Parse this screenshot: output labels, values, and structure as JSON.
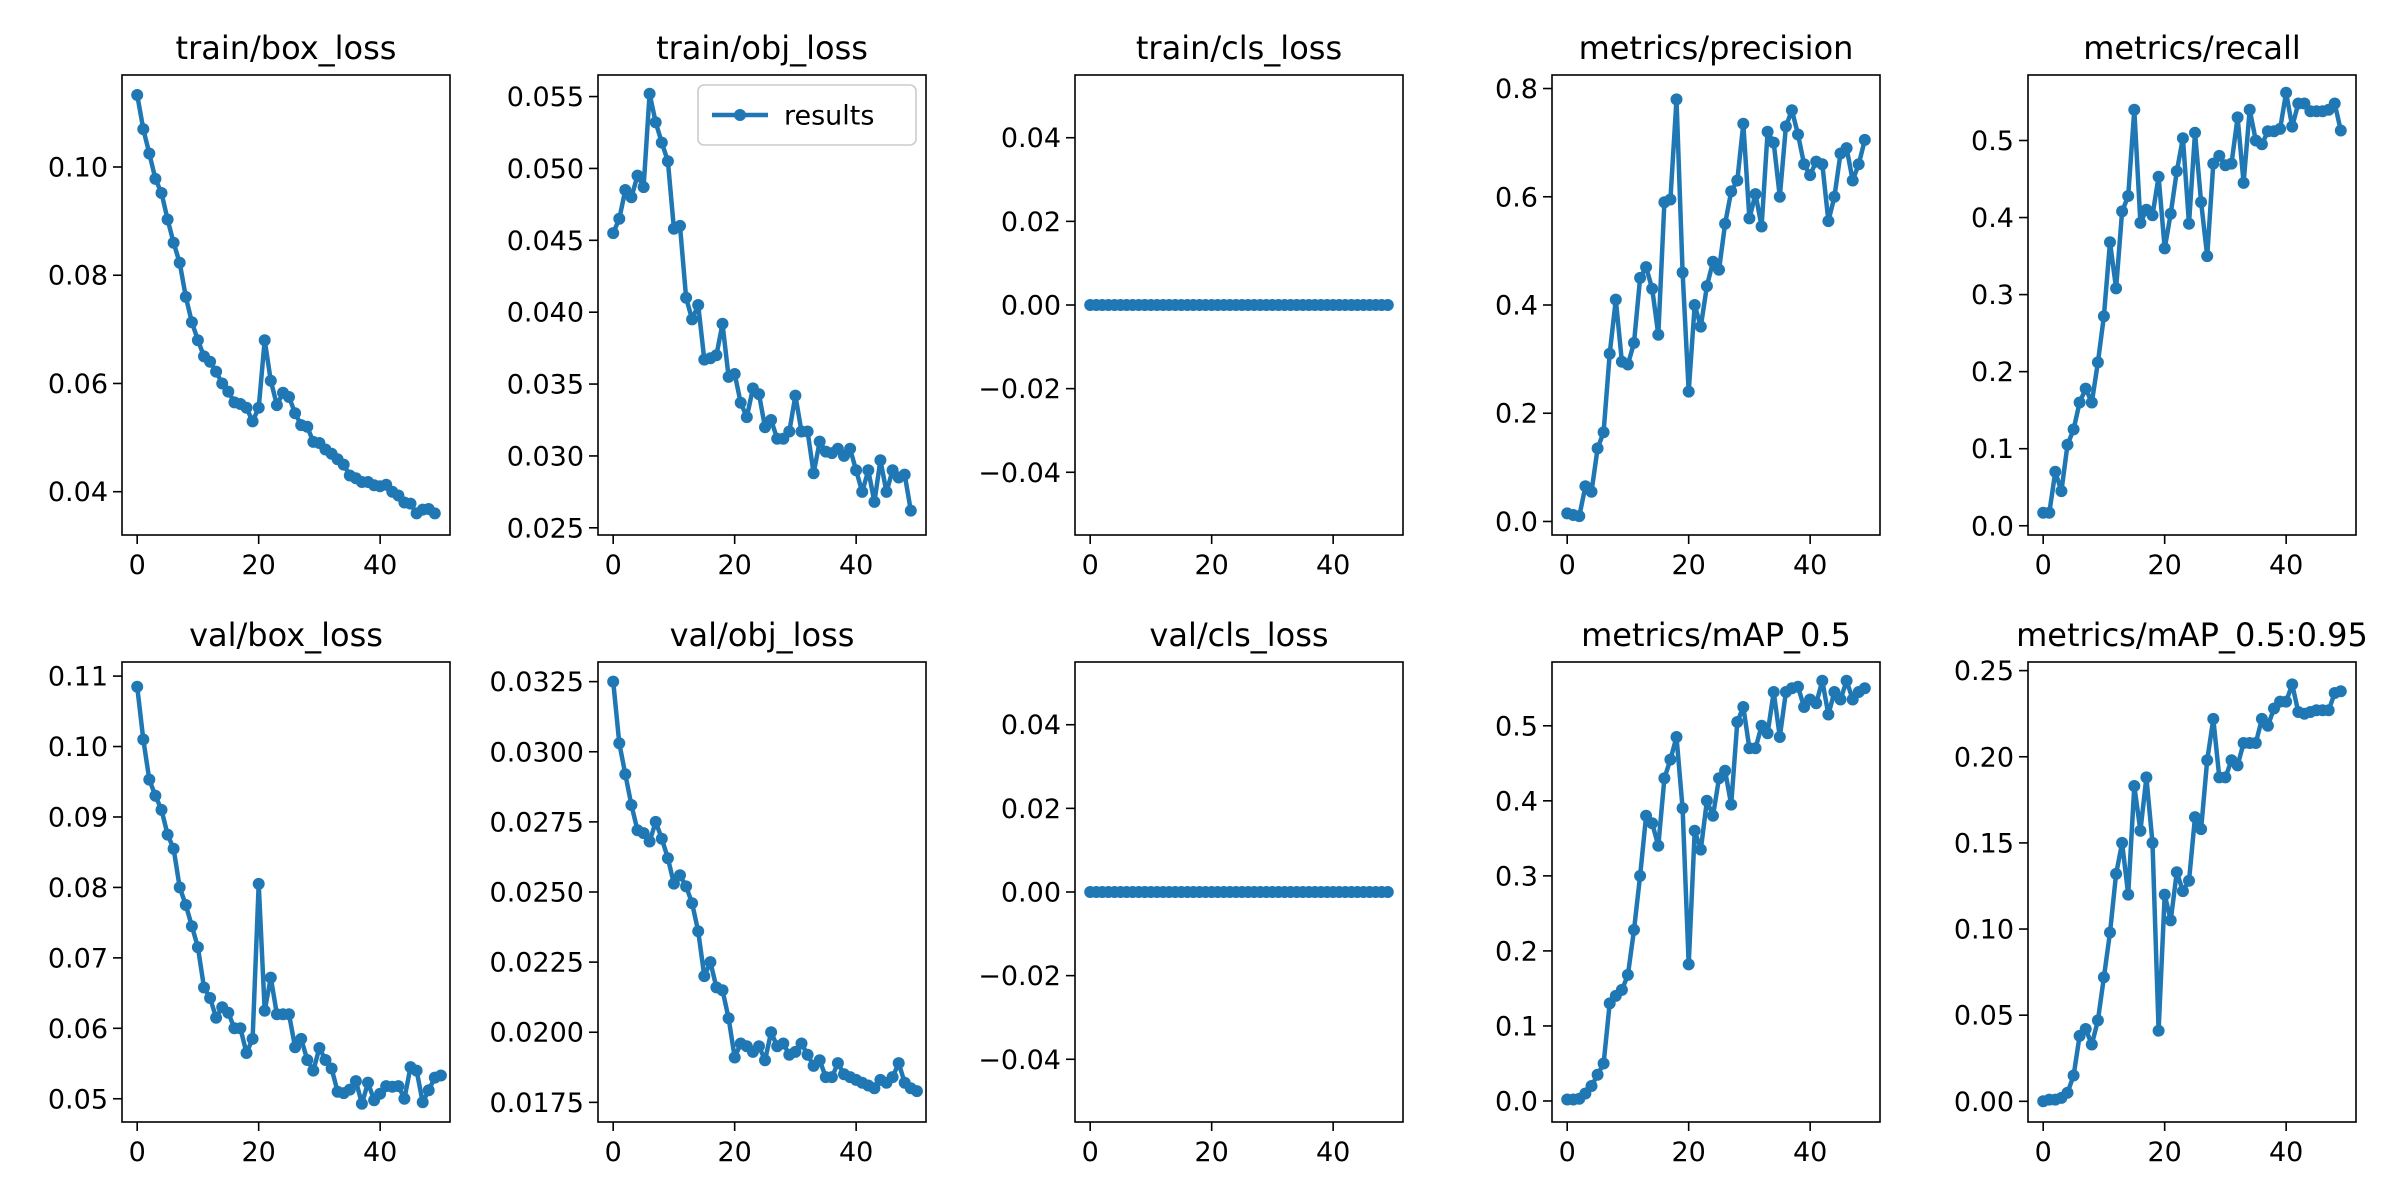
{
  "colors": {
    "series": "#1f77b4",
    "axis": "#000000",
    "background": "#ffffff"
  },
  "legend": {
    "label": "results",
    "placement": "top-right",
    "panel": 1
  },
  "chart_data": [
    {
      "type": "line",
      "title": "train/box_loss",
      "xlabel": "",
      "ylabel": "",
      "xlim": [
        -2.5,
        51.5
      ],
      "ylim": [
        0.032,
        0.117
      ],
      "xticks": [
        0,
        20,
        40
      ],
      "xtick_labels": [
        "0",
        "20",
        "40"
      ],
      "yticks": [
        0.04,
        0.06,
        0.08,
        0.1
      ],
      "ytick_labels": [
        "0.04",
        "0.06",
        "0.08",
        "0.10"
      ],
      "series": [
        {
          "x_start": 0,
          "values": [
            0.1133,
            0.107,
            0.1025,
            0.0978,
            0.0952,
            0.0903,
            0.086,
            0.0823,
            0.076,
            0.0713,
            0.068,
            0.065,
            0.064,
            0.0622,
            0.06,
            0.0585,
            0.0565,
            0.0562,
            0.0555,
            0.053,
            0.0555,
            0.068,
            0.0605,
            0.056,
            0.0583,
            0.0575,
            0.0545,
            0.0523,
            0.052,
            0.0492,
            0.049,
            0.0478,
            0.047,
            0.046,
            0.045,
            0.043,
            0.0425,
            0.0418,
            0.0418,
            0.0412,
            0.041,
            0.0413,
            0.04,
            0.0393,
            0.038,
            0.0378,
            0.036,
            0.0367,
            0.0368,
            0.036
          ]
        }
      ]
    },
    {
      "type": "line",
      "title": "train/obj_loss",
      "xlabel": "",
      "ylabel": "",
      "xlim": [
        -2.5,
        51.5
      ],
      "ylim": [
        0.0245,
        0.0565
      ],
      "xticks": [
        0,
        20,
        40
      ],
      "xtick_labels": [
        "0",
        "20",
        "40"
      ],
      "yticks": [
        0.025,
        0.03,
        0.035,
        0.04,
        0.045,
        0.05,
        0.055
      ],
      "ytick_labels": [
        "0.025",
        "0.030",
        "0.035",
        "0.040",
        "0.045",
        "0.050",
        "0.055"
      ],
      "series": [
        {
          "name": "results",
          "x_start": 0,
          "values": [
            0.0455,
            0.0465,
            0.0485,
            0.048,
            0.0495,
            0.0487,
            0.0552,
            0.0532,
            0.0518,
            0.0505,
            0.0458,
            0.046,
            0.041,
            0.0395,
            0.0405,
            0.0367,
            0.0368,
            0.037,
            0.0392,
            0.0355,
            0.0357,
            0.0337,
            0.0327,
            0.0347,
            0.0343,
            0.032,
            0.0325,
            0.0312,
            0.0312,
            0.0317,
            0.0342,
            0.0317,
            0.0317,
            0.0288,
            0.031,
            0.0303,
            0.0302,
            0.0305,
            0.03,
            0.0305,
            0.029,
            0.0275,
            0.029,
            0.0268,
            0.0297,
            0.0275,
            0.029,
            0.0285,
            0.0287,
            0.0262
          ]
        }
      ]
    },
    {
      "type": "line",
      "title": "train/cls_loss",
      "xlabel": "",
      "ylabel": "",
      "xlim": [
        -2.5,
        51.5
      ],
      "ylim": [
        -0.055,
        0.055
      ],
      "xticks": [
        0,
        20,
        40
      ],
      "xtick_labels": [
        "0",
        "20",
        "40"
      ],
      "yticks": [
        -0.04,
        -0.02,
        0.0,
        0.02,
        0.04
      ],
      "ytick_labels": [
        "−0.04",
        "−0.02",
        "0.00",
        "0.02",
        "0.04"
      ],
      "series": [
        {
          "x_start": 0,
          "values": [
            0,
            0,
            0,
            0,
            0,
            0,
            0,
            0,
            0,
            0,
            0,
            0,
            0,
            0,
            0,
            0,
            0,
            0,
            0,
            0,
            0,
            0,
            0,
            0,
            0,
            0,
            0,
            0,
            0,
            0,
            0,
            0,
            0,
            0,
            0,
            0,
            0,
            0,
            0,
            0,
            0,
            0,
            0,
            0,
            0,
            0,
            0,
            0,
            0,
            0
          ]
        }
      ]
    },
    {
      "type": "line",
      "title": "metrics/precision",
      "xlabel": "",
      "ylabel": "",
      "xlim": [
        -2.5,
        51.5
      ],
      "ylim": [
        -0.025,
        0.825
      ],
      "xticks": [
        0,
        20,
        40
      ],
      "xtick_labels": [
        "0",
        "20",
        "40"
      ],
      "yticks": [
        0.0,
        0.2,
        0.4,
        0.6,
        0.8
      ],
      "ytick_labels": [
        "0.0",
        "0.2",
        "0.4",
        "0.6",
        "0.8"
      ],
      "series": [
        {
          "x_start": 0,
          "values": [
            0.015,
            0.012,
            0.01,
            0.065,
            0.055,
            0.135,
            0.165,
            0.31,
            0.41,
            0.295,
            0.29,
            0.33,
            0.45,
            0.47,
            0.43,
            0.345,
            0.59,
            0.595,
            0.78,
            0.46,
            0.24,
            0.4,
            0.36,
            0.435,
            0.48,
            0.465,
            0.55,
            0.61,
            0.63,
            0.735,
            0.56,
            0.605,
            0.545,
            0.72,
            0.7,
            0.6,
            0.73,
            0.76,
            0.715,
            0.66,
            0.64,
            0.665,
            0.66,
            0.555,
            0.6,
            0.68,
            0.69,
            0.63,
            0.66,
            0.705
          ]
        }
      ]
    },
    {
      "type": "line",
      "title": "metrics/recall",
      "xlabel": "",
      "ylabel": "",
      "xlim": [
        -2.5,
        51.5
      ],
      "ylim": [
        -0.012,
        0.585
      ],
      "xticks": [
        0,
        20,
        40
      ],
      "xtick_labels": [
        "0",
        "20",
        "40"
      ],
      "yticks": [
        0.0,
        0.1,
        0.2,
        0.3,
        0.4,
        0.5
      ],
      "ytick_labels": [
        "0.0",
        "0.1",
        "0.2",
        "0.3",
        "0.4",
        "0.5"
      ],
      "series": [
        {
          "x_start": 0,
          "values": [
            0.017,
            0.017,
            0.07,
            0.045,
            0.105,
            0.125,
            0.16,
            0.178,
            0.16,
            0.212,
            0.272,
            0.368,
            0.308,
            0.408,
            0.428,
            0.54,
            0.393,
            0.41,
            0.403,
            0.453,
            0.36,
            0.405,
            0.46,
            0.503,
            0.392,
            0.51,
            0.42,
            0.35,
            0.47,
            0.48,
            0.468,
            0.47,
            0.53,
            0.445,
            0.54,
            0.5,
            0.495,
            0.512,
            0.512,
            0.515,
            0.562,
            0.518,
            0.548,
            0.548,
            0.538,
            0.538,
            0.538,
            0.54,
            0.548,
            0.513
          ]
        }
      ]
    },
    {
      "type": "line",
      "title": "val/box_loss",
      "xlabel": "",
      "ylabel": "",
      "xlim": [
        -2.5,
        51.5
      ],
      "ylim": [
        0.0467,
        0.112
      ],
      "xticks": [
        0,
        20,
        40
      ],
      "xtick_labels": [
        "0",
        "20",
        "40"
      ],
      "yticks": [
        0.05,
        0.06,
        0.07,
        0.08,
        0.09,
        0.1,
        0.11
      ],
      "ytick_labels": [
        "0.05",
        "0.06",
        "0.07",
        "0.08",
        "0.09",
        "0.10",
        "0.11"
      ],
      "series": [
        {
          "x_start": 0,
          "values": [
            0.1085,
            0.101,
            0.0953,
            0.093,
            0.091,
            0.0875,
            0.0855,
            0.08,
            0.0775,
            0.0745,
            0.0715,
            0.0658,
            0.0643,
            0.0615,
            0.063,
            0.0622,
            0.06,
            0.06,
            0.0565,
            0.0585,
            0.0805,
            0.0625,
            0.0672,
            0.062,
            0.062,
            0.062,
            0.0573,
            0.0585,
            0.0555,
            0.054,
            0.0572,
            0.0555,
            0.0543,
            0.051,
            0.0508,
            0.0513,
            0.0525,
            0.0493,
            0.0523,
            0.0498,
            0.0507,
            0.0518,
            0.0517,
            0.0518,
            0.05,
            0.0545,
            0.054,
            0.0495,
            0.0512,
            0.053,
            0.0533
          ]
        }
      ]
    },
    {
      "type": "line",
      "title": "val/obj_loss",
      "xlabel": "",
      "ylabel": "",
      "xlim": [
        -2.5,
        51.5
      ],
      "ylim": [
        0.0168,
        0.0332
      ],
      "xticks": [
        0,
        20,
        40
      ],
      "xtick_labels": [
        "0",
        "20",
        "40"
      ],
      "yticks": [
        0.0175,
        0.02,
        0.0225,
        0.025,
        0.0275,
        0.03,
        0.0325
      ],
      "ytick_labels": [
        "0.0175",
        "0.0200",
        "0.0225",
        "0.0250",
        "0.0275",
        "0.0300",
        "0.0325"
      ],
      "series": [
        {
          "x_start": 0,
          "values": [
            0.0325,
            0.0303,
            0.0292,
            0.0281,
            0.0272,
            0.0271,
            0.0268,
            0.0275,
            0.0269,
            0.0262,
            0.0253,
            0.0256,
            0.0252,
            0.0246,
            0.0236,
            0.022,
            0.0225,
            0.0216,
            0.0215,
            0.0205,
            0.0191,
            0.0196,
            0.0195,
            0.0193,
            0.0195,
            0.019,
            0.02,
            0.0195,
            0.0196,
            0.0192,
            0.0193,
            0.0196,
            0.0192,
            0.0188,
            0.019,
            0.0184,
            0.0184,
            0.0189,
            0.0185,
            0.0184,
            0.0183,
            0.0182,
            0.0181,
            0.018,
            0.0183,
            0.0182,
            0.0184,
            0.0189,
            0.0182,
            0.018,
            0.0179
          ]
        }
      ]
    },
    {
      "type": "line",
      "title": "val/cls_loss",
      "xlabel": "",
      "ylabel": "",
      "xlim": [
        -2.5,
        51.5
      ],
      "ylim": [
        -0.055,
        0.055
      ],
      "xticks": [
        0,
        20,
        40
      ],
      "xtick_labels": [
        "0",
        "20",
        "40"
      ],
      "yticks": [
        -0.04,
        -0.02,
        0.0,
        0.02,
        0.04
      ],
      "ytick_labels": [
        "−0.04",
        "−0.02",
        "0.00",
        "0.02",
        "0.04"
      ],
      "series": [
        {
          "x_start": 0,
          "values": [
            0,
            0,
            0,
            0,
            0,
            0,
            0,
            0,
            0,
            0,
            0,
            0,
            0,
            0,
            0,
            0,
            0,
            0,
            0,
            0,
            0,
            0,
            0,
            0,
            0,
            0,
            0,
            0,
            0,
            0,
            0,
            0,
            0,
            0,
            0,
            0,
            0,
            0,
            0,
            0,
            0,
            0,
            0,
            0,
            0,
            0,
            0,
            0,
            0,
            0
          ]
        }
      ]
    },
    {
      "type": "line",
      "title": "metrics/mAP_0.5",
      "xlabel": "",
      "ylabel": "",
      "xlim": [
        -2.5,
        51.5
      ],
      "ylim": [
        -0.028,
        0.585
      ],
      "xticks": [
        0,
        20,
        40
      ],
      "xtick_labels": [
        "0",
        "20",
        "40"
      ],
      "yticks": [
        0.0,
        0.1,
        0.2,
        0.3,
        0.4,
        0.5
      ],
      "ytick_labels": [
        "0.0",
        "0.1",
        "0.2",
        "0.3",
        "0.4",
        "0.5"
      ],
      "series": [
        {
          "x_start": 0,
          "values": [
            0.002,
            0.002,
            0.003,
            0.01,
            0.02,
            0.035,
            0.05,
            0.13,
            0.14,
            0.148,
            0.168,
            0.228,
            0.3,
            0.38,
            0.37,
            0.34,
            0.43,
            0.455,
            0.485,
            0.39,
            0.182,
            0.36,
            0.335,
            0.4,
            0.38,
            0.43,
            0.44,
            0.395,
            0.505,
            0.525,
            0.47,
            0.47,
            0.5,
            0.49,
            0.545,
            0.485,
            0.545,
            0.55,
            0.552,
            0.525,
            0.535,
            0.53,
            0.56,
            0.515,
            0.545,
            0.535,
            0.56,
            0.535,
            0.545,
            0.55
          ]
        }
      ]
    },
    {
      "type": "line",
      "title": "metrics/mAP_0.5:0.95",
      "xlabel": "",
      "ylabel": "",
      "xlim": [
        -2.5,
        51.5
      ],
      "ylim": [
        -0.012,
        0.255
      ],
      "xticks": [
        0,
        20,
        40
      ],
      "xtick_labels": [
        "0",
        "20",
        "40"
      ],
      "yticks": [
        0.0,
        0.05,
        0.1,
        0.15,
        0.2,
        0.25
      ],
      "ytick_labels": [
        "0.00",
        "0.05",
        "0.10",
        "0.15",
        "0.20",
        "0.25"
      ],
      "series": [
        {
          "x_start": 0,
          "values": [
            0.0,
            0.001,
            0.001,
            0.002,
            0.005,
            0.015,
            0.038,
            0.042,
            0.033,
            0.047,
            0.072,
            0.098,
            0.132,
            0.15,
            0.12,
            0.183,
            0.157,
            0.188,
            0.15,
            0.041,
            0.12,
            0.105,
            0.133,
            0.122,
            0.128,
            0.165,
            0.158,
            0.198,
            0.222,
            0.188,
            0.188,
            0.198,
            0.195,
            0.208,
            0.208,
            0.208,
            0.222,
            0.218,
            0.228,
            0.232,
            0.232,
            0.242,
            0.226,
            0.225,
            0.226,
            0.227,
            0.227,
            0.227,
            0.237,
            0.238
          ]
        }
      ]
    }
  ]
}
